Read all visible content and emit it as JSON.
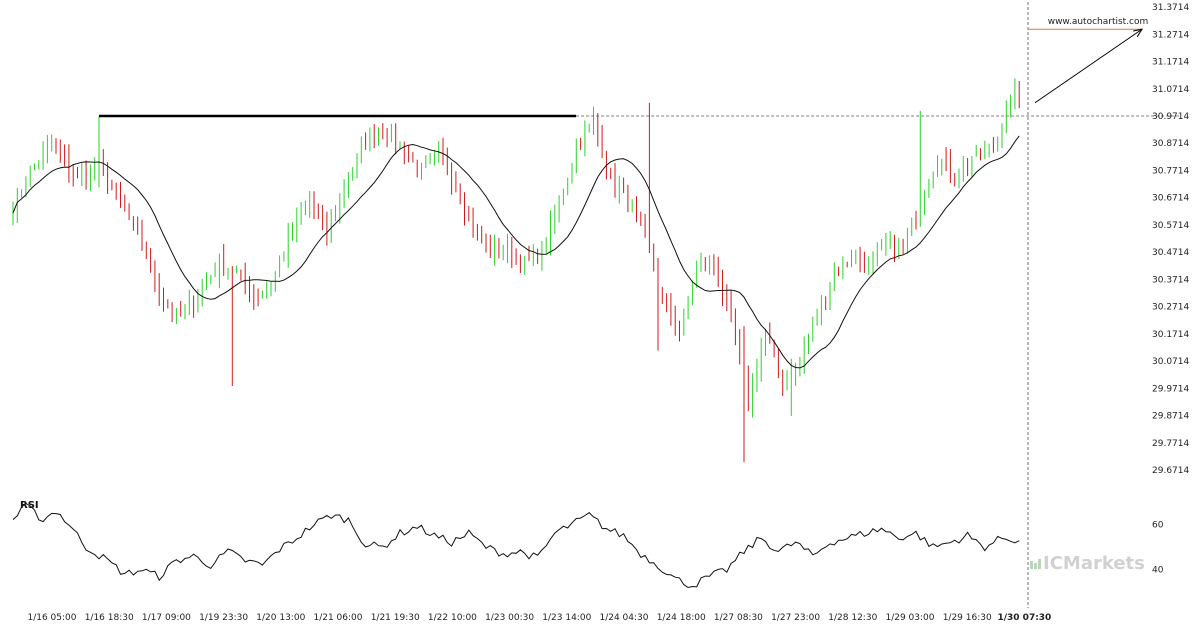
{
  "chart_data": {
    "type": "candlestick",
    "main_ylim": [
      29.62,
      31.39
    ],
    "y_ticks": [
      "31.3714",
      "31.2714",
      "31.1714",
      "31.0714",
      "30.9714",
      "30.8714",
      "30.7714",
      "30.6714",
      "30.5714",
      "30.4714",
      "30.3714",
      "30.2714",
      "30.1714",
      "30.0714",
      "29.9714",
      "29.8714",
      "29.7714",
      "29.6714"
    ],
    "x_ticks": [
      "1/16 05:00",
      "1/16 18:30",
      "1/17 09:00",
      "1/19 23:30",
      "1/20 13:00",
      "1/21 06:00",
      "1/21 19:30",
      "1/22 10:00",
      "1/23 00:30",
      "1/23 14:00",
      "1/24 04:30",
      "1/24 18:00",
      "1/27 08:30",
      "1/27 23:00",
      "1/28 12:30",
      "1/29 03:00",
      "1/29 16:30",
      "1/30 07:30"
    ],
    "resistance_level": 30.9714,
    "breakout_candle_index": 117,
    "projection_target": 31.29,
    "close_profile": [
      [
        0,
        30.64
      ],
      [
        4,
        30.77
      ],
      [
        9,
        30.87
      ],
      [
        15,
        30.74
      ],
      [
        20,
        30.79
      ],
      [
        26,
        30.63
      ],
      [
        31,
        30.46
      ],
      [
        34,
        30.32
      ],
      [
        38,
        30.23
      ],
      [
        43,
        30.31
      ],
      [
        48,
        30.43
      ],
      [
        52,
        30.4
      ],
      [
        56,
        30.3
      ],
      [
        60,
        30.35
      ],
      [
        64,
        30.52
      ],
      [
        69,
        30.66
      ],
      [
        73,
        30.54
      ],
      [
        78,
        30.75
      ],
      [
        82,
        30.88
      ],
      [
        86,
        30.92
      ],
      [
        90,
        30.86
      ],
      [
        95,
        30.77
      ],
      [
        99,
        30.83
      ],
      [
        103,
        30.72
      ],
      [
        107,
        30.55
      ],
      [
        111,
        30.47
      ],
      [
        115,
        30.48
      ],
      [
        119,
        30.43
      ],
      [
        123,
        30.47
      ],
      [
        127,
        30.65
      ],
      [
        131,
        30.85
      ],
      [
        135,
        30.95
      ],
      [
        139,
        30.74
      ],
      [
        143,
        30.66
      ],
      [
        147,
        30.52
      ],
      [
        151,
        30.3
      ],
      [
        155,
        30.18
      ],
      [
        159,
        30.42
      ],
      [
        163,
        30.43
      ],
      [
        167,
        30.22
      ],
      [
        171,
        29.93
      ],
      [
        175,
        30.18
      ],
      [
        179,
        29.98
      ],
      [
        183,
        30.07
      ],
      [
        187,
        30.25
      ],
      [
        191,
        30.4
      ],
      [
        195,
        30.45
      ],
      [
        199,
        30.42
      ],
      [
        203,
        30.49
      ],
      [
        207,
        30.48
      ],
      [
        211,
        30.66
      ],
      [
        215,
        30.82
      ],
      [
        219,
        30.75
      ],
      [
        223,
        30.82
      ],
      [
        227,
        30.85
      ],
      [
        229,
        30.87
      ],
      [
        231,
        31.0
      ],
      [
        232,
        31.02
      ],
      [
        234,
        31.07
      ]
    ],
    "highlights": [
      [
        20,
        30.97,
        30.71
      ],
      [
        51,
        29.98,
        30.42
      ],
      [
        150,
        30.11,
        30.45
      ],
      [
        148,
        31.02,
        30.7
      ],
      [
        170,
        29.7,
        30.2
      ],
      [
        181,
        29.87,
        30.08
      ],
      [
        211,
        30.99,
        30.62
      ],
      [
        234,
        31.1,
        31.0
      ]
    ],
    "ma_period": 14,
    "rsi": {
      "label": "RSI",
      "y_ticks": [
        "60",
        "40"
      ],
      "ylim": [
        28,
        72
      ],
      "profile": [
        [
          0,
          62
        ],
        [
          3,
          68
        ],
        [
          7,
          62
        ],
        [
          10,
          66
        ],
        [
          13,
          60
        ],
        [
          17,
          50
        ],
        [
          22,
          44
        ],
        [
          26,
          38
        ],
        [
          30,
          40
        ],
        [
          34,
          37
        ],
        [
          38,
          44
        ],
        [
          42,
          46
        ],
        [
          46,
          42
        ],
        [
          50,
          48
        ],
        [
          54,
          44
        ],
        [
          58,
          42
        ],
        [
          62,
          49
        ],
        [
          66,
          54
        ],
        [
          70,
          60
        ],
        [
          74,
          64
        ],
        [
          78,
          62
        ],
        [
          82,
          51
        ],
        [
          86,
          50
        ],
        [
          90,
          56
        ],
        [
          94,
          59
        ],
        [
          98,
          55
        ],
        [
          102,
          52
        ],
        [
          106,
          56
        ],
        [
          110,
          50
        ],
        [
          114,
          47
        ],
        [
          118,
          48
        ],
        [
          122,
          45
        ],
        [
          126,
          56
        ],
        [
          130,
          60
        ],
        [
          134,
          64
        ],
        [
          138,
          58
        ],
        [
          142,
          55
        ],
        [
          146,
          47
        ],
        [
          150,
          42
        ],
        [
          154,
          36
        ],
        [
          158,
          33
        ],
        [
          162,
          37
        ],
        [
          166,
          40
        ],
        [
          170,
          48
        ],
        [
          174,
          54
        ],
        [
          178,
          48
        ],
        [
          182,
          52
        ],
        [
          186,
          46
        ],
        [
          190,
          52
        ],
        [
          194,
          54
        ],
        [
          198,
          56
        ],
        [
          202,
          58
        ],
        [
          206,
          54
        ],
        [
          210,
          56
        ],
        [
          214,
          50
        ],
        [
          218,
          52
        ],
        [
          222,
          55
        ],
        [
          226,
          50
        ],
        [
          230,
          54
        ],
        [
          234,
          53
        ]
      ]
    }
  },
  "watermark_url": "www.autochartist.com",
  "brand": {
    "logo_text": "ICMarkets",
    "colors": {
      "bull": "#2bd32b",
      "bear": "#d01a1a",
      "ma": "#111111",
      "target_line": "#e07b2a",
      "grid_vertical": "#555555"
    }
  }
}
